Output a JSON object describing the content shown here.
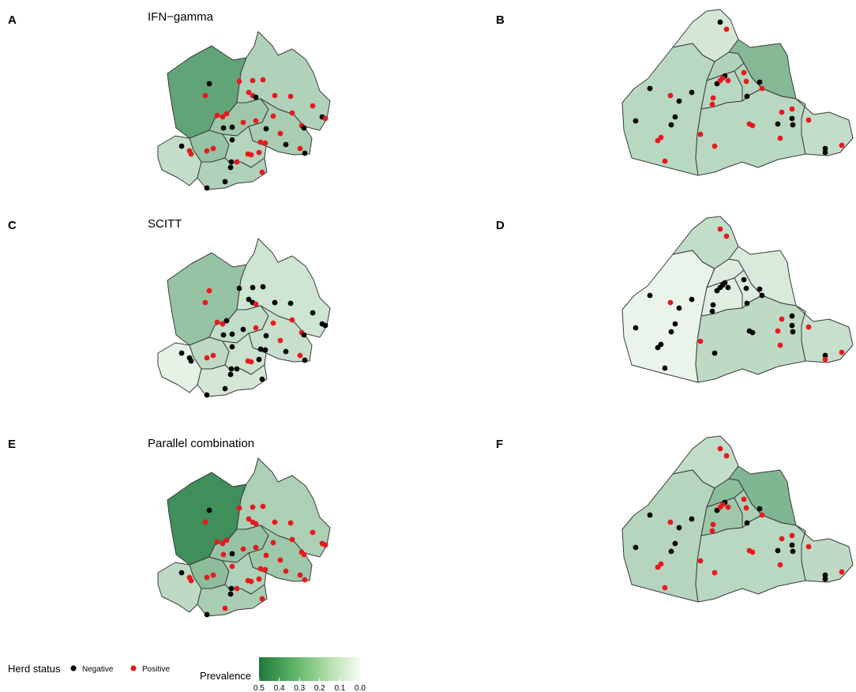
{
  "panels": [
    {
      "letter": "A",
      "title": "IFN−gamma",
      "map": "left",
      "test": "ifn"
    },
    {
      "letter": "B",
      "title": "",
      "map": "right",
      "test": "ifn"
    },
    {
      "letter": "C",
      "title": "SCITT",
      "map": "left",
      "test": "scitt"
    },
    {
      "letter": "D",
      "title": "",
      "map": "right",
      "test": "scitt"
    },
    {
      "letter": "E",
      "title": "Parallel combination",
      "map": "left",
      "test": "parallel"
    },
    {
      "letter": "F",
      "title": "",
      "map": "right",
      "test": "parallel"
    }
  ],
  "prevalence_scale": {
    "min": 0.0,
    "max": 0.5,
    "low_color": "#f7fcf5",
    "high_color": "#1b7a3c"
  },
  "prevalence": {
    "left": {
      "ifn": [
        0.34,
        0.16,
        0.2,
        0.18,
        0.12,
        0.22,
        0.15,
        0.16
      ],
      "scitt": [
        0.22,
        0.09,
        0.12,
        0.11,
        0.04,
        0.13,
        0.1,
        0.08
      ],
      "parallel": [
        0.42,
        0.17,
        0.22,
        0.2,
        0.13,
        0.24,
        0.16,
        0.18
      ]
    },
    "right": {
      "ifn": [
        0.08,
        0.14,
        0.16,
        0.14,
        0.15,
        0.26,
        0.14,
        0.12
      ],
      "scitt": [
        0.12,
        0.03,
        0.06,
        0.05,
        0.06,
        0.07,
        0.13,
        0.11
      ],
      "parallel": [
        0.12,
        0.15,
        0.24,
        0.2,
        0.17,
        0.27,
        0.14,
        0.13
      ]
    }
  },
  "legend": {
    "herd_status_title": "Herd status",
    "negative_label": "Negative",
    "positive_label": "Positive",
    "negative_color": "#000000",
    "positive_color": "#e8191d",
    "prevalence_title": "Prevalence",
    "ticks": [
      "0.5",
      "0.4",
      "0.3",
      "0.2",
      "0.1",
      "0.0"
    ]
  }
}
